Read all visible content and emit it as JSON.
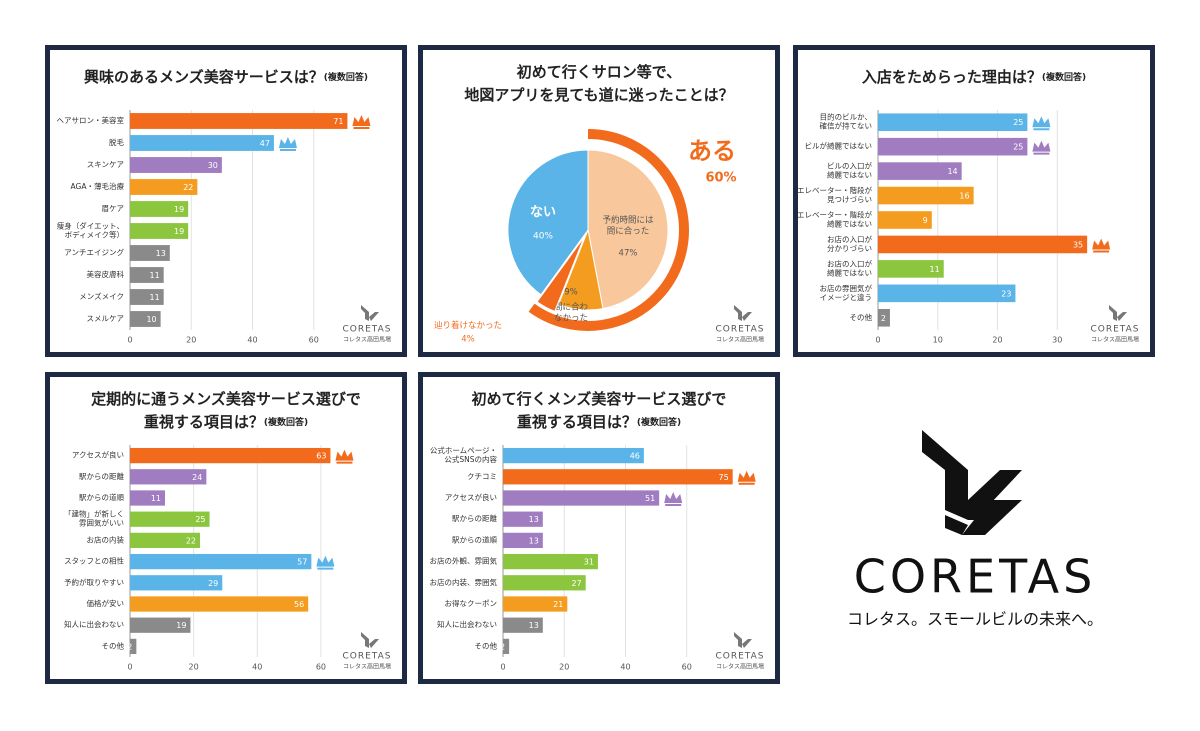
{
  "brand": {
    "name": "CORETAS",
    "tagline": "コレタス。スモールビルの未来へ。",
    "sub": "コレタス高田馬場"
  },
  "chart_data": [
    {
      "type": "bar",
      "orientation": "horizontal",
      "title": [
        "興味のあるメンズ美容サービスは？"
      ],
      "note": "(複数回答)",
      "categories": [
        "ヘアサロン・美容室",
        "脱毛",
        "スキンケア",
        "AGA・薄毛治療",
        "眉ケア",
        "痩身（ダイエット、\nボディメイク等）",
        "アンチエイジング",
        "美容皮膚科",
        "メンズメイク",
        "スメルケア"
      ],
      "values": [
        71,
        47,
        30,
        22,
        19,
        19,
        13,
        11,
        11,
        10
      ],
      "colors": [
        "#f26b1d",
        "#5ab4e8",
        "#a07cc0",
        "#f39c1f",
        "#8cc63f",
        "#8cc63f",
        "#8a8a8a",
        "#8a8a8a",
        "#8a8a8a",
        "#8a8a8a"
      ],
      "xlim": [
        0,
        80
      ],
      "xticks": [
        0,
        20,
        40,
        60
      ],
      "grid": true,
      "crowned": [
        0,
        1
      ]
    },
    {
      "type": "pie",
      "title": [
        "初めて行くサロン等で、",
        "地図アプリを見ても道に迷ったことは？"
      ],
      "categories": [
        "予約時間には\n間に合った",
        "間に合わ\nなかった",
        "辿り着けなかった",
        "ない"
      ],
      "values": [
        47,
        9,
        4,
        40
      ],
      "value_labels": [
        "47%",
        "9%",
        "4%",
        "40%"
      ],
      "colors": [
        "#f8c89c",
        "#f39c1f",
        "#f26b1d",
        "#5ab4e8"
      ],
      "ring": {
        "name": "ある",
        "value": 60,
        "value_label": "60%",
        "color": "#f26b1d"
      }
    },
    {
      "type": "bar",
      "orientation": "horizontal",
      "title": [
        "入店をためらった理由は？"
      ],
      "note": "(複数回答)",
      "categories": [
        "目的のビルか、\n確信が持てない",
        "ビルが綺麗ではない",
        "ビルの入口が\n綺麗ではない",
        "エレベーター・階段が\n見つけづらい",
        "エレベーター・階段が\n綺麗ではない",
        "お店の入口が\n分かりづらい",
        "お店の入口が\n綺麗ではない",
        "お店の雰囲気が\nイメージと違う",
        "その他"
      ],
      "values": [
        25,
        25,
        14,
        16,
        9,
        35,
        11,
        23,
        2
      ],
      "colors": [
        "#5ab4e8",
        "#a07cc0",
        "#a07cc0",
        "#f39c1f",
        "#f39c1f",
        "#f26b1d",
        "#8cc63f",
        "#5ab4e8",
        "#8a8a8a"
      ],
      "xlim": [
        0,
        41
      ],
      "xticks": [
        0,
        10,
        20,
        30
      ],
      "grid": true,
      "crowned": [
        5,
        0,
        1
      ]
    },
    {
      "type": "bar",
      "orientation": "horizontal",
      "title": [
        "定期的に通うメンズ美容サービス選びで",
        "重視する項目は？"
      ],
      "note": "(複数回答)",
      "categories": [
        "アクセスが良い",
        "駅からの距離",
        "駅からの道順",
        "「建物」が新しく\n雰囲気がいい",
        "お店の内装",
        "スタッフとの相性",
        "予約が取りやすい",
        "価格が安い",
        "知人に出会わない",
        "その他"
      ],
      "values": [
        63,
        24,
        11,
        25,
        22,
        57,
        29,
        56,
        19,
        2
      ],
      "colors": [
        "#f26b1d",
        "#a07cc0",
        "#a07cc0",
        "#8cc63f",
        "#8cc63f",
        "#5ab4e8",
        "#5ab4e8",
        "#f39c1f",
        "#8a8a8a",
        "#8a8a8a"
      ],
      "xlim": [
        0,
        77
      ],
      "xticks": [
        0,
        20,
        40,
        60
      ],
      "grid": true,
      "crowned": [
        0,
        5
      ]
    },
    {
      "type": "bar",
      "orientation": "horizontal",
      "title": [
        "初めて行くメンズ美容サービス選びで",
        "重視する項目は？"
      ],
      "note": "(複数回答)",
      "categories": [
        "公式ホームページ・\n公式SNSの内容",
        "クチコミ",
        "アクセスが良い",
        "駅からの距離",
        "駅からの道順",
        "お店の外観、雰囲気",
        "お店の内装、雰囲気",
        "お得なクーポン",
        "知人に出会わない",
        "その他"
      ],
      "values": [
        46,
        75,
        51,
        13,
        13,
        31,
        27,
        21,
        13,
        2
      ],
      "colors": [
        "#5ab4e8",
        "#f26b1d",
        "#a07cc0",
        "#a07cc0",
        "#a07cc0",
        "#8cc63f",
        "#8cc63f",
        "#f39c1f",
        "#8a8a8a",
        "#8a8a8a"
      ],
      "xlim": [
        0,
        80
      ],
      "xticks": [
        0,
        20,
        40,
        60
      ],
      "grid": true,
      "crowned": [
        1,
        2
      ]
    }
  ]
}
